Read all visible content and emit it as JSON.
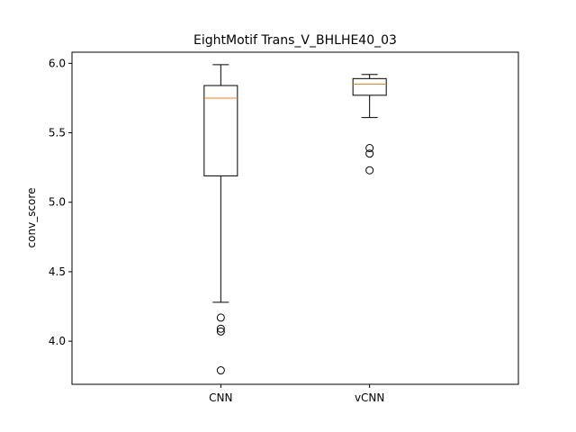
{
  "chart_data": {
    "type": "box",
    "title": "EightMotif Trans_V_BHLHE40_03",
    "xlabel": "",
    "ylabel": "conv_score",
    "ylim": [
      3.69,
      6.08
    ],
    "yticks": [
      4.0,
      4.5,
      5.0,
      5.5,
      6.0
    ],
    "ytick_labels": [
      "4.0",
      "4.5",
      "5.0",
      "5.5",
      "6.0"
    ],
    "grid": false,
    "categories": [
      "CNN",
      "vCNN"
    ],
    "boxes": [
      {
        "name": "CNN",
        "whisker_low": 4.28,
        "q1": 5.19,
        "median": 5.75,
        "q3": 5.84,
        "whisker_high": 5.99,
        "outliers": [
          4.17,
          4.09,
          4.07,
          3.79
        ]
      },
      {
        "name": "vCNN",
        "whisker_low": 5.61,
        "q1": 5.77,
        "median": 5.85,
        "q3": 5.89,
        "whisker_high": 5.92,
        "outliers": [
          5.39,
          5.35,
          5.23
        ]
      }
    ],
    "colors": {
      "box": "#000000",
      "median": "#ff7f0e",
      "outlier": "#000000"
    }
  }
}
